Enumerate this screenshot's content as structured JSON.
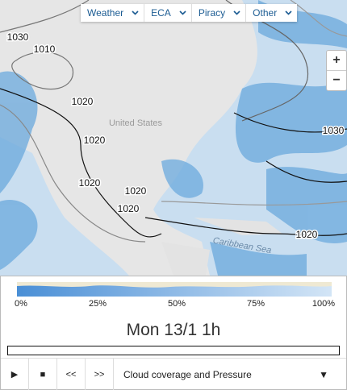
{
  "menu": {
    "items": [
      "Weather",
      "ECA",
      "Piracy",
      "Other"
    ]
  },
  "zoom": {
    "in": "+",
    "out": "−"
  },
  "map": {
    "isobar_labels": [
      "1030",
      "1010",
      "1020",
      "1020",
      "1020",
      "1020",
      "1020",
      "1030",
      "1020"
    ],
    "place_labels": [
      "United States",
      "Caribbean Sea"
    ]
  },
  "scale": {
    "labels": [
      "0%",
      "25%",
      "50%",
      "75%",
      "100%"
    ]
  },
  "timeline": {
    "time": "Mon 13/1 1h"
  },
  "controls": {
    "play": "▶",
    "stop": "■",
    "back": "<<",
    "forward": ">>",
    "layer": "Cloud coverage and Pressure",
    "dropdown": "▼"
  }
}
